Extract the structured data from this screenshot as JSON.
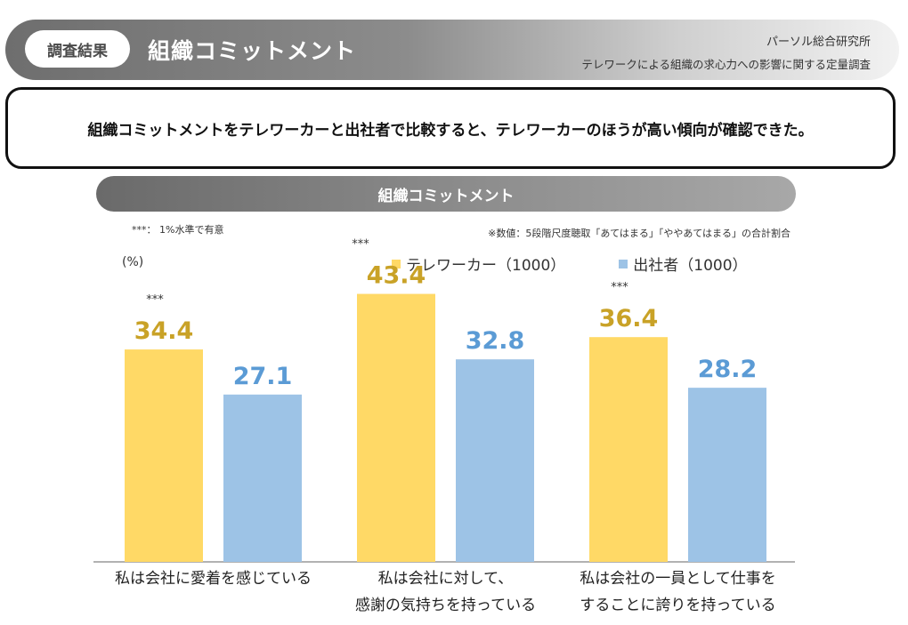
{
  "header": {
    "tag_label": "調査結果",
    "title": "組織コミットメント",
    "organization": "パーソル総合研究所",
    "subtitle": "テレワークによる組織の求心力への影響に関する定量調査"
  },
  "summary": {
    "text": "組織コミットメントをテレワーカーと出社者で比較すると、テレワーカーのほうが高い傾向が確認できた。"
  },
  "colors": {
    "telework": "#ffd966",
    "telework_label": "#c9a227",
    "office": "#9dc3e6",
    "office_label": "#5b9bd5"
  },
  "chart_data": {
    "type": "bar",
    "title": "組織コミットメント",
    "unit_label": "(%)",
    "significance_note": "***： 1%水準で有意",
    "values_note": "※数値：5段階尺度聴取「あてはまる」「ややあてはまる」の合計割合",
    "significance_marker": "***",
    "categories": [
      {
        "line1": "私は会社に愛着を感じている",
        "line2": ""
      },
      {
        "line1": "私は会社に対して、",
        "line2": "感謝の気持ちを持っている"
      },
      {
        "line1": "私は会社の一員として仕事を",
        "line2": "することに誇りを持っている"
      }
    ],
    "series": [
      {
        "name": "テレワーカー（1000）",
        "values": [
          34.4,
          43.4,
          36.4
        ]
      },
      {
        "name": "出社者（1000）",
        "values": [
          27.1,
          32.8,
          28.2
        ]
      }
    ],
    "significant": [
      true,
      true,
      true
    ],
    "ylim": [
      0,
      55
    ],
    "xlabel": "",
    "ylabel": ""
  }
}
